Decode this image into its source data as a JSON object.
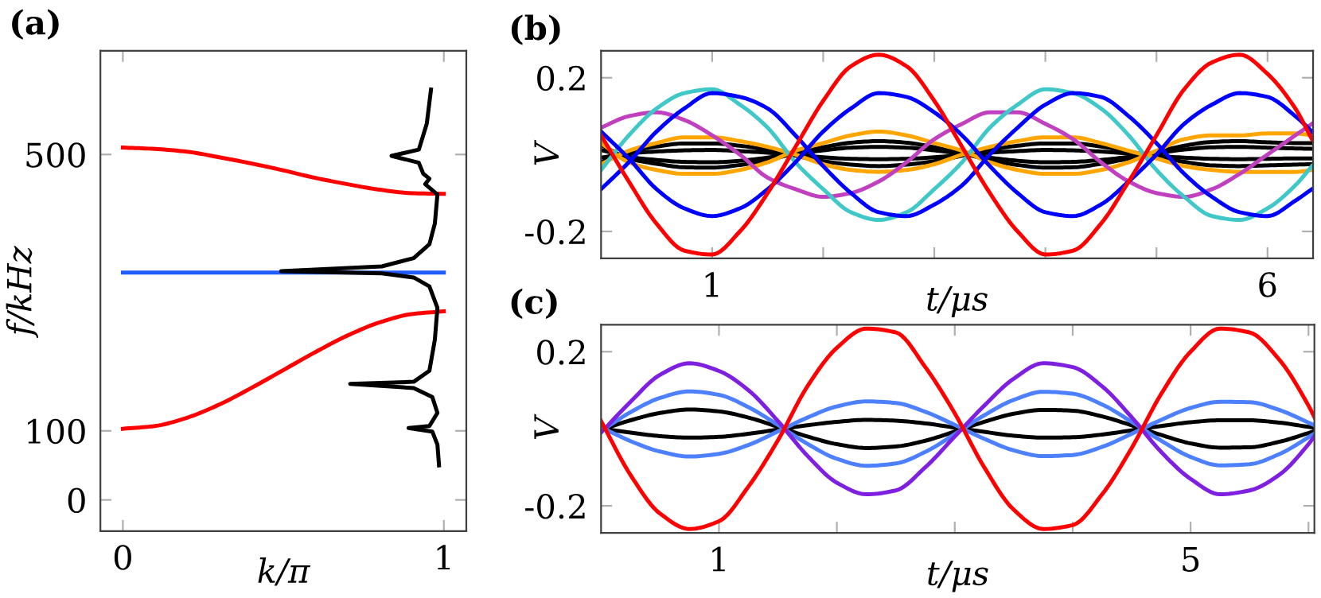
{
  "chart_data": [
    {
      "type": "line",
      "title": "(a)",
      "xlabel": "k/π",
      "ylabel": "f/kHz",
      "xlim": [
        -0.07,
        1.07
      ],
      "ylim": [
        -45,
        650
      ],
      "xticks": [
        0,
        1
      ],
      "yticks": [
        0,
        100,
        500
      ],
      "grid": false,
      "legend": false,
      "series": [
        {
          "color": "#ff0000",
          "x": [
            0,
            0.1,
            0.2,
            0.3,
            0.4,
            0.5,
            0.6,
            0.7,
            0.8,
            0.9,
            1
          ],
          "values": [
            510,
            508,
            504,
            496,
            487,
            477,
            466,
            457,
            449,
            444,
            443
          ]
        },
        {
          "color": "#ff0000",
          "x": [
            0,
            0.1,
            0.2,
            0.3,
            0.4,
            0.5,
            0.6,
            0.7,
            0.8,
            0.9,
            1
          ],
          "values": [
            103,
            107,
            119,
            138,
            162,
            188,
            214,
            238,
            257,
            269,
            273
          ]
        },
        {
          "color": "#1f5cff",
          "x": [
            0,
            1
          ],
          "values": [
            329,
            329
          ]
        },
        {
          "color": "#000000",
          "x": [
            0.96,
            0.947,
            0.922,
            0.837,
            0.922,
            0.936,
            0.955,
            0.942,
            0.98,
            0.972,
            0.955,
            0.906,
            0.807,
            0.493,
            0.807,
            0.906,
            0.955,
            0.98,
            0.972,
            0.955,
            0.906,
            0.708,
            0.906,
            0.964,
            0.98,
            0.955,
            0.89,
            0.964,
            0.98,
            0.985
          ],
          "values": [
            594,
            545,
            507,
            498,
            488,
            472,
            465,
            457,
            442,
            400,
            370,
            350,
            338,
            331,
            328,
            322,
            309,
            278,
            232,
            187,
            171,
            168,
            162,
            149,
            126,
            107,
            104,
            99,
            80,
            50
          ]
        }
      ]
    },
    {
      "type": "line",
      "title": "(b)",
      "xlabel": "t/μs",
      "ylabel": "V",
      "xlim": [
        0,
        6.41
      ],
      "ylim": [
        -0.27,
        0.27
      ],
      "xticks": [
        1,
        {
          "value": 2,
          "label": null
        },
        {
          "value": 3,
          "label": null
        },
        {
          "value": 4,
          "label": null
        },
        {
          "value": 5,
          "label": null
        },
        6
      ],
      "yticks": [
        -0.2,
        0.2
      ],
      "grid": false,
      "legend": false,
      "x": [
        0,
        0.25,
        0.5,
        0.75,
        1,
        1.25,
        1.5,
        1.75,
        2,
        2.25,
        2.5,
        2.75,
        3,
        3.25,
        3.5,
        3.75,
        4,
        4.25,
        4.5,
        4.75,
        5,
        5.25,
        5.5,
        5.75,
        6,
        6.25,
        6.4
      ],
      "series": [
        {
          "color": "#000000",
          "values": [
            0.025,
            -0.01,
            -0.024,
            -0.033,
            -0.034,
            -0.027,
            -0.014,
            0.003,
            0.019,
            0.031,
            0.035,
            0.031,
            0.019,
            0.003,
            -0.014,
            -0.027,
            -0.034,
            -0.033,
            -0.024,
            -0.01,
            0.007,
            0.023,
            0.033,
            0.035,
            0.032,
            0.03,
            0.03
          ]
        },
        {
          "color": "#000000",
          "values": [
            0.012,
            -0.006,
            -0.014,
            -0.019,
            -0.02,
            -0.016,
            -0.008,
            0.002,
            0.011,
            0.018,
            0.02,
            0.018,
            0.011,
            0.002,
            -0.008,
            -0.016,
            -0.02,
            -0.019,
            -0.014,
            -0.006,
            0.004,
            0.013,
            0.019,
            0.02,
            0.018,
            0.016,
            0.015
          ]
        },
        {
          "color": "#000000",
          "values": [
            -0.02,
            0.008,
            0.021,
            0.029,
            0.029,
            0.023,
            0.012,
            -0.003,
            -0.017,
            -0.026,
            -0.03,
            -0.026,
            -0.017,
            -0.003,
            0.012,
            0.023,
            0.029,
            0.029,
            0.021,
            0.008,
            -0.006,
            -0.019,
            -0.028,
            -0.03,
            -0.028,
            -0.026,
            -0.025
          ]
        },
        {
          "color": "#000000",
          "values": [
            -0.008,
            0.003,
            0.008,
            0.011,
            0.012,
            0.009,
            0.005,
            -0.001,
            -0.007,
            -0.011,
            -0.012,
            -0.011,
            -0.007,
            -0.001,
            0.005,
            0.009,
            0.012,
            0.011,
            0.008,
            0.003,
            -0.003,
            -0.008,
            -0.011,
            -0.012,
            -0.011,
            -0.01,
            -0.01
          ]
        },
        {
          "color": "#ffa500",
          "values": [
            0.03,
            -0.02,
            -0.04,
            -0.05,
            -0.05,
            -0.04,
            -0.02,
            0.01,
            0.03,
            0.05,
            0.06,
            0.05,
            0.03,
            0.01,
            -0.02,
            -0.04,
            -0.05,
            -0.05,
            -0.04,
            -0.02,
            0.01,
            0.04,
            0.05,
            0.05,
            0.055,
            0.055,
            0.05
          ]
        },
        {
          "color": "#ffa500",
          "values": [
            -0.025,
            0.01,
            0.03,
            0.045,
            0.045,
            0.035,
            0.02,
            0,
            -0.025,
            -0.04,
            -0.045,
            -0.04,
            -0.025,
            0,
            0.02,
            0.035,
            0.045,
            0.045,
            0.03,
            0.01,
            -0.01,
            -0.03,
            -0.04,
            -0.045,
            -0.045,
            -0.045,
            -0.04
          ]
        },
        {
          "color": "#c040c0",
          "values": [
            0.07,
            0.1,
            0.11,
            0.09,
            0.05,
            0,
            -0.06,
            -0.09,
            -0.11,
            -0.1,
            -0.07,
            -0.02,
            0.04,
            0.08,
            0.11,
            0.11,
            0.08,
            0.04,
            -0.02,
            -0.07,
            -0.1,
            -0.11,
            -0.09,
            -0.05,
            0,
            0.05,
            0.08
          ]
        },
        {
          "color": "#40c8c8",
          "values": [
            -0.04,
            0.05,
            0.12,
            0.16,
            0.17,
            0.13,
            0.07,
            -0.02,
            -0.09,
            -0.15,
            -0.17,
            -0.15,
            -0.09,
            -0.02,
            0.07,
            0.13,
            0.17,
            0.16,
            0.12,
            0.05,
            -0.04,
            -0.11,
            -0.16,
            -0.17,
            -0.14,
            -0.08,
            -0.03
          ]
        },
        {
          "color": "#0000ff",
          "values": [
            -0.09,
            -0.02,
            0.06,
            0.12,
            0.16,
            0.15,
            0.12,
            0.05,
            -0.03,
            -0.1,
            -0.15,
            -0.16,
            -0.13,
            -0.08,
            0,
            0.07,
            0.13,
            0.16,
            0.15,
            0.1,
            0.03,
            -0.05,
            -0.11,
            -0.15,
            -0.16,
            -0.12,
            -0.09
          ]
        },
        {
          "color": "#0000ff",
          "values": [
            0.06,
            -0.01,
            -0.09,
            -0.14,
            -0.16,
            -0.14,
            -0.09,
            -0.02,
            0.06,
            0.12,
            0.16,
            0.15,
            0.11,
            0.05,
            -0.03,
            -0.1,
            -0.15,
            -0.16,
            -0.13,
            -0.07,
            0,
            0.08,
            0.13,
            0.16,
            0.15,
            0.1,
            0.06
          ]
        },
        {
          "color": "#ff0000",
          "values": [
            0.05,
            -0.07,
            -0.18,
            -0.25,
            -0.26,
            -0.2,
            -0.1,
            0.02,
            0.14,
            0.23,
            0.26,
            0.23,
            0.14,
            0.02,
            -0.1,
            -0.2,
            -0.26,
            -0.25,
            -0.18,
            -0.07,
            0.05,
            0.17,
            0.24,
            0.26,
            0.21,
            0.12,
            0.04
          ]
        }
      ]
    },
    {
      "type": "line",
      "title": "(c)",
      "xlabel": "t/μs",
      "ylabel": "V",
      "xlim": [
        0,
        6.05
      ],
      "ylim": [
        -0.27,
        0.27
      ],
      "xticks": [
        1,
        {
          "value": 2,
          "label": null
        },
        {
          "value": 3,
          "label": null
        },
        {
          "value": 4,
          "label": null
        },
        5,
        {
          "value": 6,
          "label": null
        }
      ],
      "yticks": [
        -0.2,
        0.2
      ],
      "grid": false,
      "legend": false,
      "x": [
        0,
        0.25,
        0.5,
        0.75,
        1,
        1.25,
        1.5,
        1.75,
        2,
        2.25,
        2.5,
        2.75,
        3,
        3.25,
        3.5,
        3.75,
        4,
        4.25,
        4.5,
        4.75,
        5,
        5.25,
        5.5,
        5.75,
        6,
        6.05
      ],
      "series": [
        {
          "color": "#000000",
          "values": [
            -0.003,
            0.022,
            0.041,
            0.05,
            0.045,
            0.029,
            0.005,
            -0.02,
            -0.04,
            -0.05,
            -0.046,
            -0.031,
            -0.007,
            0.018,
            0.039,
            0.049,
            0.047,
            0.032,
            0.009,
            -0.016,
            -0.038,
            -0.049,
            -0.048,
            -0.034,
            -0.011,
            -0.006
          ]
        },
        {
          "color": "#000000",
          "values": [
            0.001,
            -0.01,
            -0.019,
            -0.023,
            -0.021,
            -0.013,
            -0.002,
            0.009,
            0.018,
            0.023,
            0.021,
            0.014,
            0.003,
            -0.008,
            -0.018,
            -0.023,
            -0.022,
            -0.015,
            -0.004,
            0.007,
            0.017,
            0.022,
            0.022,
            0.016,
            0.005,
            0.003
          ]
        },
        {
          "color": "#4d80ff",
          "values": [
            -0.006,
            0.043,
            0.08,
            0.097,
            0.088,
            0.056,
            0.01,
            -0.039,
            -0.078,
            -0.096,
            -0.09,
            -0.06,
            -0.014,
            0.035,
            0.075,
            0.096,
            0.091,
            0.063,
            0.018,
            -0.031,
            -0.073,
            -0.095,
            -0.092,
            -0.066,
            -0.022,
            -0.012
          ]
        },
        {
          "color": "#4d80ff",
          "values": [
            0.004,
            -0.032,
            -0.059,
            -0.072,
            -0.065,
            -0.042,
            -0.007,
            0.029,
            0.058,
            0.071,
            0.067,
            0.044,
            0.01,
            -0.026,
            -0.056,
            -0.071,
            -0.068,
            -0.047,
            -0.013,
            0.023,
            0.054,
            0.07,
            0.069,
            0.049,
            0.016,
            0.009
          ]
        },
        {
          "color": "#7f1fe0",
          "values": [
            -0.01,
            0.07,
            0.14,
            0.17,
            0.15,
            0.1,
            0.02,
            -0.07,
            -0.14,
            -0.17,
            -0.16,
            -0.1,
            -0.02,
            0.06,
            0.13,
            0.17,
            0.16,
            0.11,
            0.03,
            -0.06,
            -0.13,
            -0.17,
            -0.16,
            -0.12,
            -0.04,
            -0.02
          ]
        },
        {
          "color": "#ff0000",
          "values": [
            0.02,
            -0.12,
            -0.22,
            -0.26,
            -0.24,
            -0.15,
            -0.03,
            0.11,
            0.21,
            0.26,
            0.25,
            0.16,
            0.04,
            -0.1,
            -0.21,
            -0.26,
            -0.25,
            -0.17,
            -0.05,
            0.09,
            0.2,
            0.26,
            0.25,
            0.18,
            0.06,
            0.03
          ]
        }
      ]
    }
  ]
}
